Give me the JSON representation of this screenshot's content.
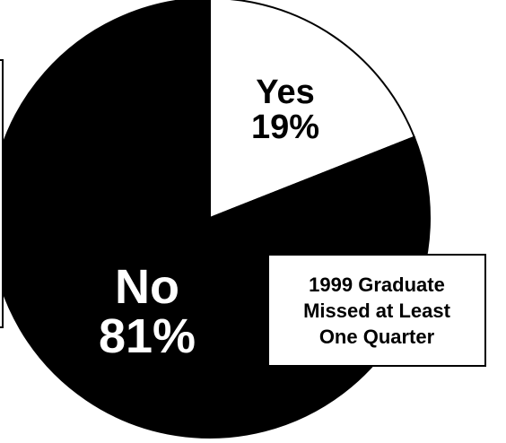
{
  "chart_data": {
    "type": "pie",
    "title": "1999 Graduate Missed at Least One Quarter",
    "categories": [
      "Yes",
      "No"
    ],
    "values": [
      19,
      81
    ],
    "value_labels": [
      "19%",
      "81%"
    ],
    "colors": [
      "#ffffff",
      "#000000"
    ],
    "label_colors": [
      "#000000",
      "#ffffff"
    ],
    "start_angle_deg": 0,
    "direction": "clockwise",
    "legend": "none",
    "grid": false
  },
  "caption": {
    "lines": [
      "1999 Graduate",
      "Missed at Least",
      "One Quarter"
    ]
  }
}
